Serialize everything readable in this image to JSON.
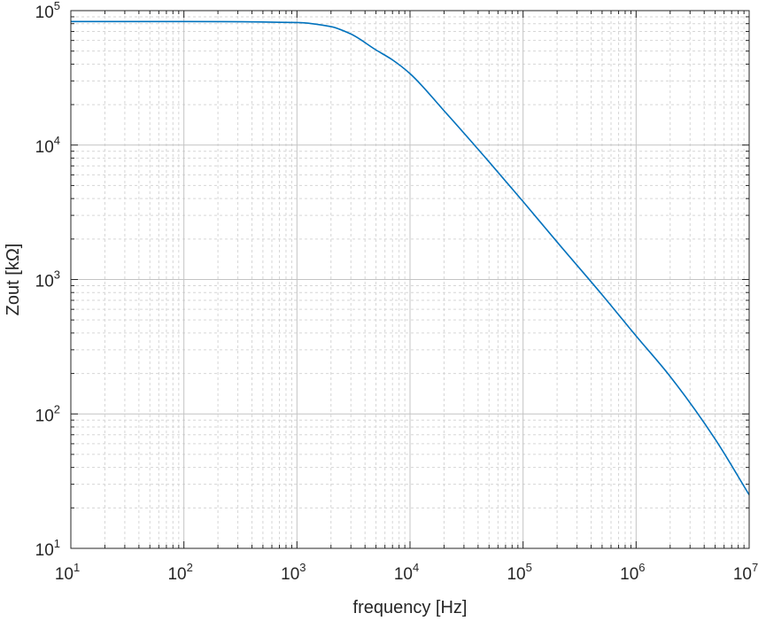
{
  "chart_data": {
    "type": "line",
    "xlabel": "frequency [Hz]",
    "ylabel": "Zout [kΩ]",
    "x_scale": "log",
    "y_scale": "log",
    "xlim": [
      10,
      10000000
    ],
    "ylim": [
      10,
      100000
    ],
    "grid": true,
    "minor_grid": true,
    "x_ticks": [
      {
        "base": "10",
        "exp": "1"
      },
      {
        "base": "10",
        "exp": "2"
      },
      {
        "base": "10",
        "exp": "3"
      },
      {
        "base": "10",
        "exp": "4"
      },
      {
        "base": "10",
        "exp": "5"
      },
      {
        "base": "10",
        "exp": "6"
      },
      {
        "base": "10",
        "exp": "7"
      }
    ],
    "y_ticks": [
      {
        "base": "10",
        "exp": "1"
      },
      {
        "base": "10",
        "exp": "2"
      },
      {
        "base": "10",
        "exp": "3"
      },
      {
        "base": "10",
        "exp": "4"
      },
      {
        "base": "10",
        "exp": "5"
      }
    ],
    "series": [
      {
        "color": "#0072bd",
        "x": [
          10,
          100,
          1000,
          2000,
          3000,
          5000,
          7000,
          10000,
          20000,
          50000,
          100000,
          200000,
          500000,
          1000000,
          2000000,
          5000000,
          10000000
        ],
        "y": [
          83000,
          83000,
          81500,
          76000,
          67000,
          51000,
          43000,
          34000,
          18000,
          7500,
          3800,
          1900,
          770,
          380,
          190,
          65,
          25
        ]
      }
    ]
  }
}
